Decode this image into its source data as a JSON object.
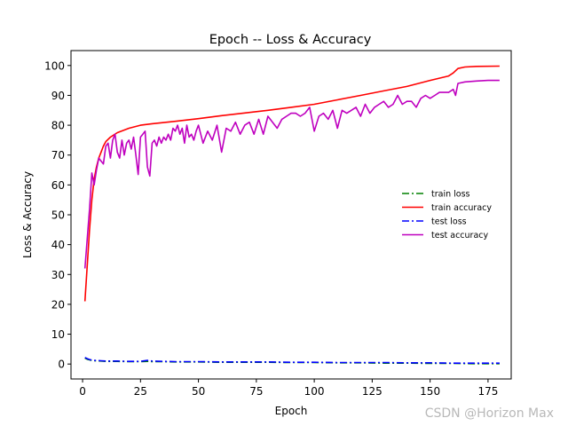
{
  "chart_data": {
    "type": "line",
    "title": "Epoch -- Loss & Accuracy",
    "xlabel": "Epoch",
    "ylabel": "Loss & Accuracy",
    "xlim": [
      -5,
      185
    ],
    "ylim": [
      -5,
      105
    ],
    "xticks": [
      "0",
      "25",
      "50",
      "75",
      "100",
      "125",
      "150",
      "175"
    ],
    "yticks": [
      "0",
      "10",
      "20",
      "30",
      "40",
      "50",
      "60",
      "70",
      "80",
      "90",
      "100"
    ],
    "grid": false,
    "legend_position": "center-right",
    "series": [
      {
        "name": "train loss",
        "color": "#008000",
        "style": "dashdot",
        "x": [
          1,
          2,
          3,
          4,
          5,
          8,
          10,
          15,
          20,
          25,
          28,
          30,
          35,
          40,
          50,
          60,
          70,
          80,
          90,
          100,
          110,
          120,
          130,
          140,
          150,
          160,
          170,
          180
        ],
        "y": [
          2.0,
          1.6,
          1.4,
          1.2,
          1.1,
          1.0,
          0.9,
          0.9,
          0.8,
          0.8,
          0.9,
          0.8,
          0.8,
          0.7,
          0.7,
          0.6,
          0.6,
          0.6,
          0.5,
          0.5,
          0.4,
          0.4,
          0.3,
          0.3,
          0.2,
          0.2,
          0.1,
          0.1
        ]
      },
      {
        "name": "train accuracy",
        "color": "#ff0000",
        "style": "solid",
        "x": [
          1,
          2,
          3,
          4,
          5,
          6,
          7,
          8,
          9,
          10,
          12,
          15,
          20,
          25,
          30,
          40,
          50,
          60,
          70,
          80,
          90,
          100,
          110,
          120,
          130,
          140,
          150,
          158,
          160,
          162,
          165,
          170,
          180
        ],
        "y": [
          21,
          33,
          45,
          55,
          62,
          66,
          69,
          71,
          73,
          74.5,
          76,
          77.5,
          79,
          80,
          80.5,
          81.3,
          82.2,
          83.2,
          84.1,
          85,
          86,
          87,
          88.5,
          90,
          91.5,
          93,
          95,
          96.5,
          97.5,
          99,
          99.5,
          99.7,
          99.8
        ]
      },
      {
        "name": "test loss",
        "color": "#0000ff",
        "style": "dashdot",
        "x": [
          1,
          2,
          3,
          4,
          5,
          8,
          10,
          15,
          20,
          25,
          28,
          30,
          35,
          40,
          50,
          60,
          70,
          80,
          90,
          100,
          110,
          120,
          130,
          140,
          150,
          160,
          170,
          180
        ],
        "y": [
          2.2,
          1.8,
          1.5,
          1.3,
          1.2,
          1.1,
          1.0,
          1.0,
          0.9,
          0.9,
          1.2,
          1.0,
          0.9,
          0.8,
          0.8,
          0.7,
          0.7,
          0.7,
          0.6,
          0.6,
          0.5,
          0.5,
          0.5,
          0.4,
          0.4,
          0.3,
          0.3,
          0.3
        ]
      },
      {
        "name": "test accuracy",
        "color": "#bf00bf",
        "style": "solid",
        "x": [
          1,
          2,
          3,
          4,
          5,
          6,
          7,
          8,
          9,
          10,
          11,
          12,
          13,
          14,
          15,
          16,
          17,
          18,
          19,
          20,
          21,
          22,
          23,
          24,
          25,
          26,
          27,
          28,
          29,
          30,
          31,
          32,
          33,
          34,
          35,
          36,
          37,
          38,
          39,
          40,
          41,
          42,
          43,
          44,
          45,
          46,
          47,
          48,
          49,
          50,
          52,
          54,
          56,
          58,
          60,
          62,
          64,
          66,
          68,
          70,
          72,
          74,
          76,
          78,
          80,
          82,
          84,
          86,
          88,
          90,
          92,
          94,
          96,
          98,
          100,
          102,
          104,
          106,
          108,
          110,
          112,
          114,
          116,
          118,
          120,
          122,
          124,
          126,
          128,
          130,
          132,
          134,
          136,
          138,
          140,
          142,
          144,
          146,
          148,
          150,
          152,
          154,
          156,
          158,
          160,
          161,
          162,
          165,
          170,
          175,
          180
        ],
        "y": [
          32,
          42,
          52,
          64,
          60,
          65,
          69,
          68,
          67,
          73,
          74,
          69,
          75,
          77,
          71,
          69,
          75,
          70,
          74,
          75,
          72,
          76,
          70,
          63.5,
          76,
          77,
          78,
          66,
          63,
          74,
          75,
          73,
          76,
          74,
          76,
          75,
          77,
          75,
          79,
          78,
          80,
          77,
          79,
          74,
          80,
          76,
          77,
          75,
          78,
          80,
          74,
          78,
          75,
          80,
          71,
          79,
          78,
          81,
          77,
          80,
          81,
          77,
          82,
          77,
          83,
          81,
          79,
          82,
          83,
          84,
          84,
          83,
          84,
          86,
          78,
          83,
          84,
          82,
          85,
          79,
          85,
          84,
          85,
          86,
          83,
          87,
          84,
          86,
          87,
          88,
          86,
          87,
          90,
          87,
          88,
          88,
          86,
          89,
          90,
          89,
          90,
          91,
          91,
          91,
          92,
          90,
          94,
          94.5,
          94.8,
          95,
          95
        ]
      }
    ]
  },
  "watermark": "CSDN @Horizon Max"
}
